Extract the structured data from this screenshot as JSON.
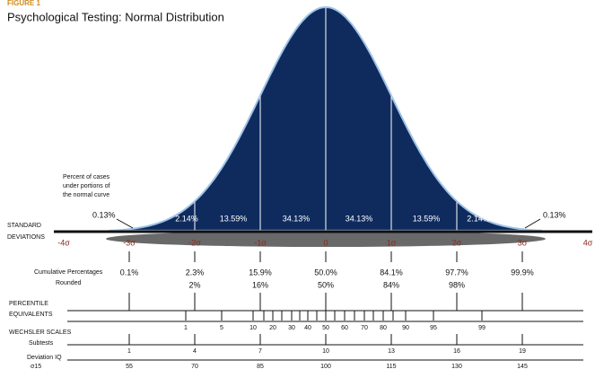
{
  "figure_label": "FIGURE 1",
  "title": "Psychological Testing: Normal Distribution",
  "note": [
    "Percent of cases",
    "under portions of",
    "the normal curve"
  ],
  "tails": [
    "0.13%",
    "0.13%"
  ],
  "areas": [
    "2.14%",
    "13.59%",
    "34.13%",
    "34.13%",
    "13.59%",
    "2.14%"
  ],
  "sd_label": [
    "STANDARD",
    "DEVIATIONS"
  ],
  "sd_marks": [
    "-4σ",
    "-3σ",
    "-2σ",
    "-1σ",
    "0",
    "1σ",
    "2σ",
    "3σ",
    "4σ"
  ],
  "cumulative": {
    "label": [
      "Cumulative Percentages",
      "Rounded"
    ],
    "values": [
      "0.1%",
      "2.3%",
      "15.9%",
      "50.0%",
      "84.1%",
      "97.7%",
      "99.9%"
    ],
    "rounded": [
      "2%",
      "16%",
      "50%",
      "84%",
      "98%"
    ]
  },
  "percentile": {
    "label": [
      "PERCENTILE",
      "EQUIVALENTS"
    ],
    "values": [
      "1",
      "5",
      "10",
      "20",
      "30",
      "40",
      "50",
      "60",
      "70",
      "80",
      "90",
      "95",
      "99"
    ]
  },
  "wechsler": {
    "label": "WECHSLER SCALES",
    "subtests_label": "Subtests",
    "subtests": [
      "1",
      "4",
      "7",
      "10",
      "13",
      "16",
      "19"
    ],
    "iq_label": "Deviation IQ",
    "iq_sd": "σ15",
    "iq": [
      "55",
      "70",
      "85",
      "100",
      "115",
      "130",
      "145"
    ]
  }
}
